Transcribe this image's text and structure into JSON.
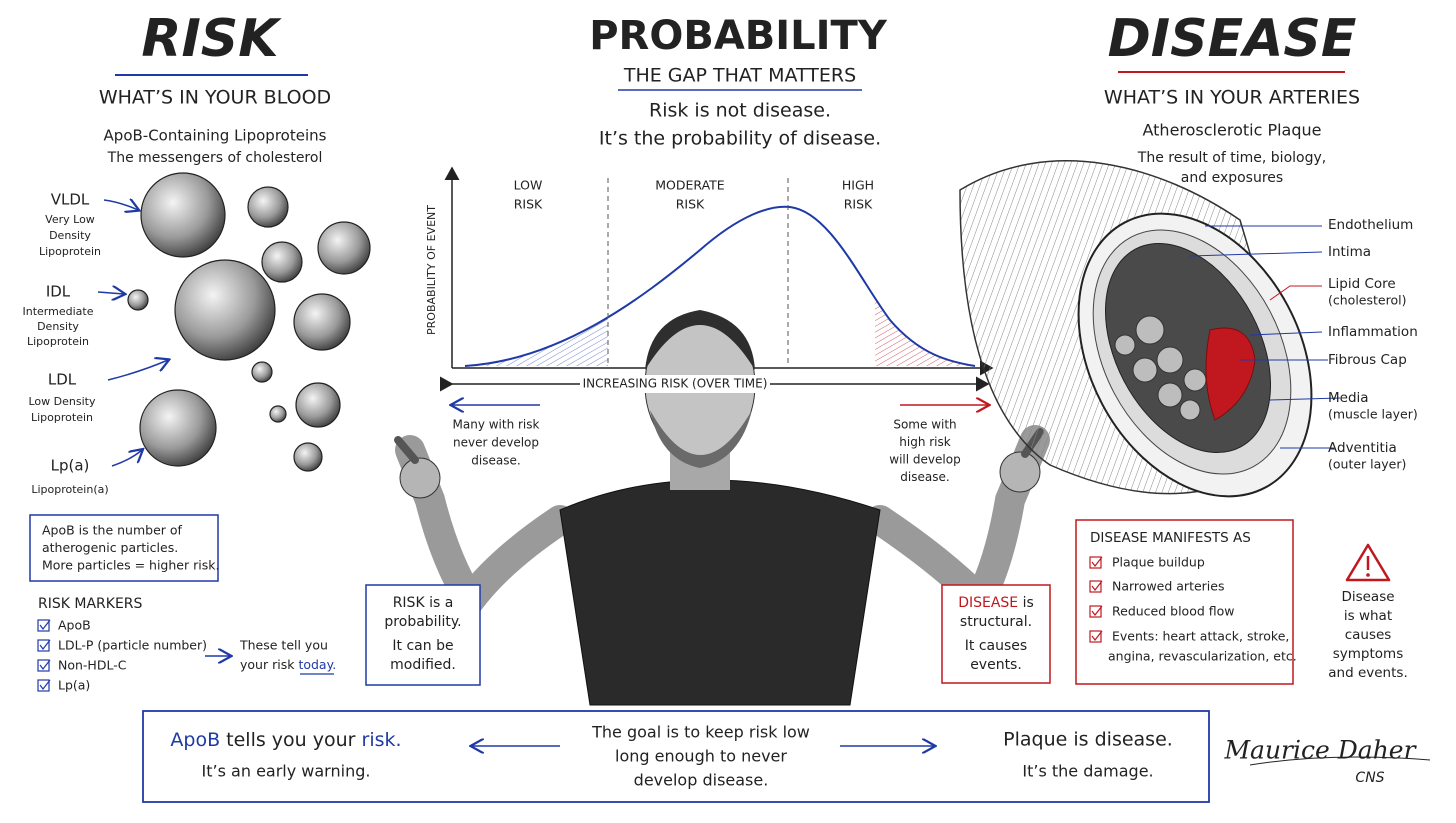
{
  "risk": {
    "title": "RISK",
    "subtitle": "WHAT’S IN YOUR BLOOD",
    "heading": "ApoB-Containing Lipoproteins",
    "tagline": "The messengers of cholesterol",
    "particles": [
      {
        "abbr": "VLDL",
        "name": [
          "Very Low",
          "Density",
          "Lipoprotein"
        ]
      },
      {
        "abbr": "IDL",
        "name": [
          "Intermediate",
          "Density",
          "Lipoprotein"
        ]
      },
      {
        "abbr": "LDL",
        "name": [
          "Low Density",
          "Lipoprotein"
        ]
      },
      {
        "abbr": "Lp(a)",
        "name": [
          "Lipoprotein(a)"
        ]
      }
    ],
    "note": [
      "ApoB is the number of",
      "atherogenic particles.",
      "More particles = higher risk."
    ],
    "markers_title": "RISK MARKERS",
    "markers": [
      "ApoB",
      "LDL-P (particle number)",
      "Non-HDL-C",
      "Lp(a)"
    ],
    "markers_note": {
      "line1": "These tell you",
      "line2": "your risk",
      "emphasis": "today."
    },
    "box": {
      "lead": "RISK is a",
      "emphasis": "probability.",
      "line3": "It can be",
      "line4": "modified."
    }
  },
  "probability": {
    "title": "PROBABILITY",
    "subtitle": "THE GAP THAT MATTERS",
    "lines": [
      "Risk is not disease.",
      "It’s the probability of disease."
    ],
    "y_label": "PROBABILITY OF EVENT",
    "x_label": "INCREASING RISK (OVER TIME)",
    "zones": [
      [
        "LOW",
        "RISK"
      ],
      [
        "MODERATE",
        "RISK"
      ],
      [
        "HIGH",
        "RISK"
      ]
    ],
    "left_note": [
      "Many with risk",
      "never develop",
      "disease."
    ],
    "right_note": [
      "Some with",
      "high risk",
      "will develop",
      "disease."
    ]
  },
  "disease": {
    "title": "DISEASE",
    "subtitle": "WHAT’S IN YOUR ARTERIES",
    "heading": "Atherosclerotic Plaque",
    "tagline": [
      "The result of time, biology,",
      "and exposures"
    ],
    "layers": [
      {
        "name": "Endothelium"
      },
      {
        "name": "Intima"
      },
      {
        "name": "Lipid Core",
        "detail": "(cholesterol)"
      },
      {
        "name": "Inflammation"
      },
      {
        "name": "Fibrous Cap"
      },
      {
        "name": "Media",
        "detail": "(muscle layer)"
      },
      {
        "name": "Adventitia",
        "detail": "(outer layer)"
      }
    ],
    "box": {
      "lead": "DISEASE",
      "rest": "is",
      "emphasis": "structural.",
      "line3": "It causes",
      "line4": "events."
    },
    "manifests_title": "DISEASE MANIFESTS AS",
    "manifests": [
      [
        "Plaque buildup"
      ],
      [
        "Narrowed arteries"
      ],
      [
        "Reduced blood flow"
      ],
      [
        "Events: heart attack, stroke,",
        "angina, revascularization, etc."
      ]
    ],
    "warning": [
      "Disease",
      "is what",
      "causes",
      "symptoms",
      "and events."
    ]
  },
  "footer": {
    "left": {
      "a": "ApoB",
      "b": "tells you your",
      "c": "risk.",
      "line2": "It’s an early warning."
    },
    "center": [
      "The goal is to keep risk low",
      "long enough to never",
      "develop disease."
    ],
    "right": {
      "line1": "Plaque is disease.",
      "line2": "It’s the damage."
    },
    "signature": "Maurice Daher",
    "credential": "CNS"
  }
}
